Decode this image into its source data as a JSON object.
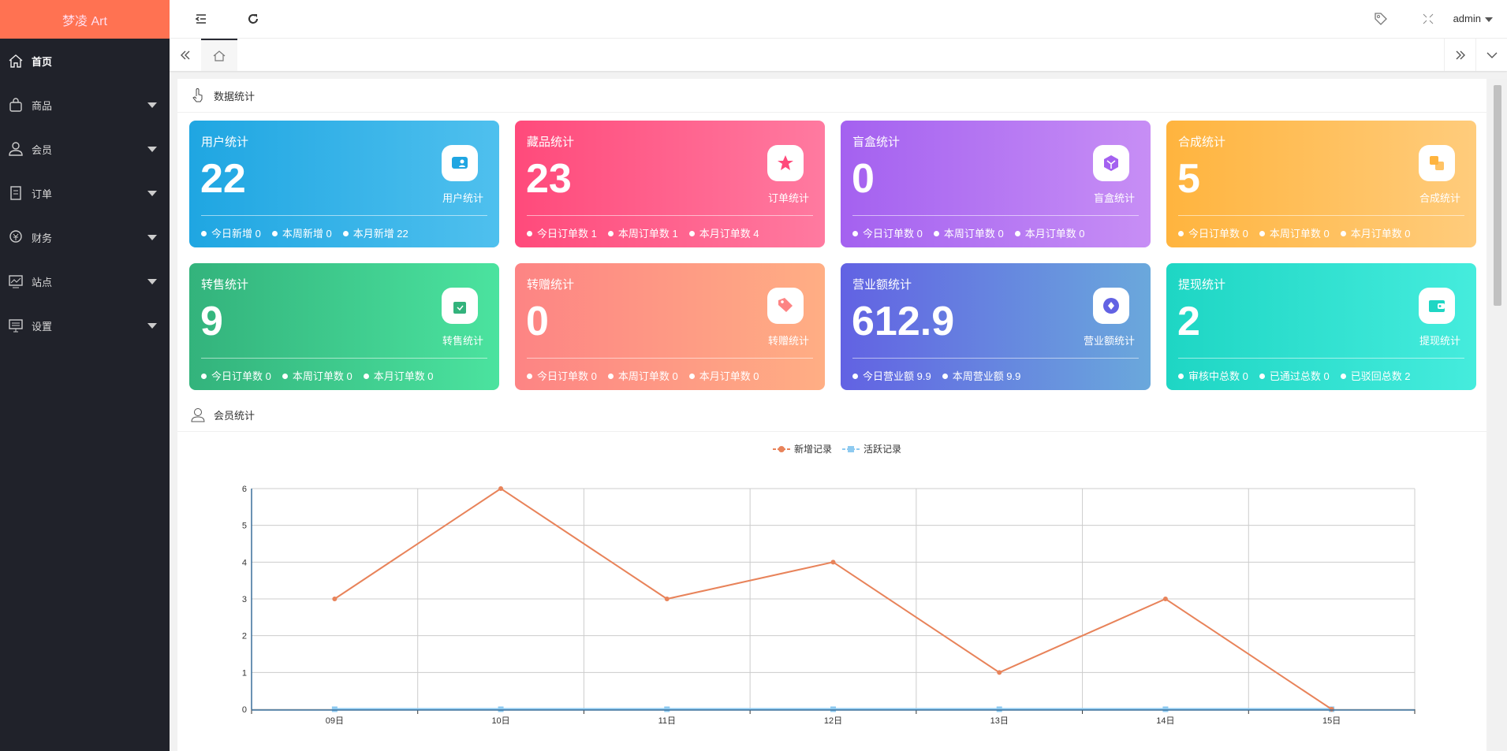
{
  "app": {
    "logo": "梦凌 Art"
  },
  "sidebar": {
    "items": [
      {
        "label": "首页",
        "icon": "home-icon",
        "active": true
      },
      {
        "label": "商品",
        "icon": "bag-icon"
      },
      {
        "label": "会员",
        "icon": "user-icon"
      },
      {
        "label": "订单",
        "icon": "document-icon"
      },
      {
        "label": "财务",
        "icon": "money-icon"
      },
      {
        "label": "站点",
        "icon": "chart-icon"
      },
      {
        "label": "设置",
        "icon": "monitor-icon"
      }
    ]
  },
  "header": {
    "user": "admin"
  },
  "sections": {
    "stats": "数据统计",
    "members": "会员统计"
  },
  "cards": [
    {
      "title": "用户统计",
      "value": "22",
      "icon_label": "用户统计",
      "icon": "user-folder-icon",
      "gradient": [
        "#1fa6e2",
        "#4fc0ee"
      ],
      "stats": [
        "今日新增 0",
        "本周新增 0",
        "本月新增 22"
      ]
    },
    {
      "title": "藏品统计",
      "value": "23",
      "icon_label": "订单统计",
      "icon": "star-icon",
      "gradient": [
        "#ff4a7b",
        "#ff7aa0"
      ],
      "stats": [
        "今日订单数 1",
        "本周订单数 1",
        "本月订单数 4"
      ]
    },
    {
      "title": "盲盒统计",
      "value": "0",
      "icon_label": "盲盒统计",
      "icon": "box-icon",
      "gradient": [
        "#a461f0",
        "#c78ef5"
      ],
      "stats": [
        "今日订单数 0",
        "本周订单数 0",
        "本月订单数 0"
      ]
    },
    {
      "title": "合成统计",
      "value": "5",
      "icon_label": "合成统计",
      "icon": "merge-icon",
      "gradient": [
        "#ffb43e",
        "#ffcc7c"
      ],
      "stats": [
        "今日订单数 0",
        "本周订单数 0",
        "本月订单数 0"
      ]
    },
    {
      "title": "转售统计",
      "value": "9",
      "icon_label": "转售统计",
      "icon": "shopping-bag-icon",
      "gradient": [
        "#33b37c",
        "#4be39f"
      ],
      "stats": [
        "今日订单数 0",
        "本周订单数 0",
        "本月订单数 0"
      ]
    },
    {
      "title": "转赠统计",
      "value": "0",
      "icon_label": "转赠统计",
      "icon": "tag-icon",
      "gradient": [
        "#fd8484",
        "#ffae84"
      ],
      "stats": [
        "今日订单数 0",
        "本周订单数 0",
        "本月订单数 0"
      ]
    },
    {
      "title": "营业额统计",
      "value": "612.9",
      "icon_label": "营业额统计",
      "icon": "coin-icon",
      "gradient": [
        "#6262e3",
        "#6aa8dc"
      ],
      "stats": [
        "今日营业额 9.9",
        "本周营业额 9.9"
      ]
    },
    {
      "title": "提现统计",
      "value": "2",
      "icon_label": "提现统计",
      "icon": "wallet-icon",
      "gradient": [
        "#1ed6c4",
        "#45ecdd"
      ],
      "stats": [
        "审核中总数 0",
        "已通过总数 0",
        "已驳回总数 2"
      ]
    }
  ],
  "chart_data": {
    "type": "line",
    "categories": [
      "09日",
      "10日",
      "11日",
      "12日",
      "13日",
      "14日",
      "15日"
    ],
    "series": [
      {
        "name": "新增记录",
        "values": [
          3,
          6,
          3,
          4,
          1,
          3,
          0
        ],
        "color": "#e8835a"
      },
      {
        "name": "活跃记录",
        "values": [
          0,
          0,
          0,
          0,
          0,
          0,
          0
        ],
        "color": "#8ecaf0"
      }
    ],
    "ylim": [
      0,
      6
    ],
    "yticks": [
      "0",
      "1",
      "2",
      "3",
      "4",
      "5",
      "6"
    ],
    "grid": true,
    "legend": "top-center"
  }
}
